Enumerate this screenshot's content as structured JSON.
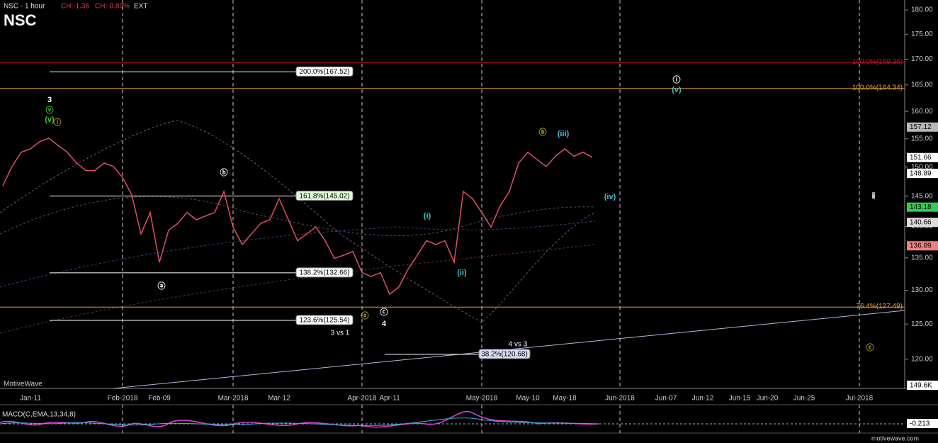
{
  "chart_data": {
    "type": "line",
    "title": "NSC",
    "subtitle": "NSC - 1 hour",
    "change": "CH:-1.36",
    "change_pct": "CH:-0.89%",
    "session": "EXT",
    "watermark": "MotiveWave",
    "footer": "motivewave.com",
    "log": true,
    "categories": [
      null,
      null,
      null,
      "Jan-11",
      null,
      null,
      null,
      null,
      null,
      null,
      null,
      null,
      null,
      "Feb-2018",
      null,
      null,
      null,
      "Feb-09",
      null,
      null,
      null,
      null,
      null,
      null,
      null,
      "Mar-2018",
      null,
      null,
      null,
      null,
      "Mar-12",
      null,
      null,
      null,
      null,
      null,
      null,
      null,
      null,
      "Apr-2018",
      null,
      null,
      "Apr-11",
      null,
      null,
      null,
      null,
      null,
      null,
      null,
      null,
      null,
      "May-2018",
      null,
      null,
      null,
      null,
      "May-10",
      null,
      null,
      null,
      "May-18",
      null,
      null,
      null,
      null,
      null,
      "Jun-2018",
      null,
      null,
      null,
      null,
      "Jun-07",
      null,
      null,
      null,
      "Jun-12",
      null,
      null,
      null,
      "Jun-15",
      null,
      null,
      "Jun-20",
      null,
      null,
      null,
      "Jun-25",
      null,
      null,
      null,
      null,
      null,
      "Jul-2018",
      null,
      null
    ],
    "series": [
      {
        "name": "NSC",
        "color": "#e0505a",
        "values": [
          146.8,
          150.1,
          152.6,
          153.2,
          154.5,
          155.1,
          153.8,
          152.6,
          150.7,
          149.4,
          149.4,
          150.7,
          150.1,
          148.2,
          145.2,
          138.8,
          142.3,
          134.3,
          139.4,
          140.5,
          142.3,
          141.1,
          141.7,
          142.3,
          145.8,
          139.9,
          137.1,
          138.8,
          140.5,
          141.1,
          144.6,
          141.1,
          137.7,
          138.8,
          139.9,
          137.7,
          134.9,
          135.4,
          136.0,
          132.7,
          132.1,
          132.7,
          129.4,
          130.5,
          133.2,
          135.4,
          137.7,
          137.1,
          137.7,
          134.3,
          145.8,
          144.6,
          142.3,
          139.9,
          143.4,
          145.8,
          150.7,
          152.6,
          151.3,
          150.1,
          151.9,
          153.2,
          151.9,
          152.6,
          151.7,
          null,
          null,
          null,
          null,
          null,
          null,
          null,
          null,
          null,
          null,
          null,
          null,
          null,
          null,
          null,
          null,
          null,
          null,
          null,
          null,
          null,
          null,
          null,
          null,
          null,
          null,
          null,
          null,
          null,
          null,
          null
        ]
      }
    ],
    "ylim": [
      116,
      182.1
    ],
    "yticks": [
      {
        "value": 120,
        "label": "120.00"
      },
      {
        "value": 125,
        "label": "125.00"
      },
      {
        "value": 130,
        "label": "130.00"
      },
      {
        "value": 135,
        "label": "135.00"
      },
      {
        "value": 140,
        "label": "140.00"
      },
      {
        "value": 145,
        "label": "145.00"
      },
      {
        "value": 150,
        "label": "150.00"
      },
      {
        "value": 155,
        "label": "155.00"
      },
      {
        "value": 160,
        "label": "160.00"
      },
      {
        "value": 165,
        "label": "165.00"
      },
      {
        "value": 170,
        "label": "170.00"
      },
      {
        "value": 175,
        "label": "175.00"
      },
      {
        "value": 180,
        "label": "180.00"
      }
    ],
    "price_tags": [
      {
        "value": 157.12,
        "color": "#b8b8b8"
      },
      {
        "value": 151.66,
        "color": "#ffffff"
      },
      {
        "value": 148.89,
        "color": "#ffffff"
      },
      {
        "value": 143.18,
        "color": "#33cc55"
      },
      {
        "value": 140.66,
        "color": "#dddddd"
      },
      {
        "value": 136.89,
        "color": "#f08080"
      }
    ],
    "volume_tag": "149.6K",
    "fib_levels": [
      {
        "value": 167.52,
        "label": "200.0%(167.52)",
        "color": "#ffffff"
      },
      {
        "value": 145.02,
        "label": "161.8%(145.02)",
        "color": "#ffffff"
      },
      {
        "value": 132.66,
        "label": "138.2%(132.66)",
        "color": "#ffffff"
      },
      {
        "value": 125.54,
        "label": "123.6%(125.54)",
        "color": "#ffffff"
      },
      {
        "value": 120.68,
        "label": "38.2%(120.68)",
        "color": "#ffffff"
      },
      {
        "value": 169.36,
        "label": "100.0%(169.36)",
        "color": "#d0102a"
      },
      {
        "value": 164.34,
        "label": "100.0%(164.34)",
        "color": "#e8a030"
      },
      {
        "value": 127.49,
        "label": "76.4%(127.49)",
        "color": "#e8a030"
      }
    ],
    "annotations": [
      "3 vs 1",
      "4 vs 3"
    ],
    "wave_labels": [
      {
        "text": "3",
        "color": "#ffffff"
      },
      {
        "text": "ⓥ",
        "color": "#3cc83c"
      },
      {
        "text": "(v)",
        "color": "#3cc83c"
      },
      {
        "text": "ⓘ",
        "color": "#a8a020"
      },
      {
        "text": "ⓑ",
        "color": "#ffffff"
      },
      {
        "text": "ⓐ",
        "color": "#ffffff"
      },
      {
        "text": "ⓒ",
        "color": "#ffffff"
      },
      {
        "text": "4",
        "color": "#ffffff"
      },
      {
        "text": "ⓐ",
        "color": "#a8a020"
      },
      {
        "text": "(i)",
        "color": "#40c0d0"
      },
      {
        "text": "(ii)",
        "color": "#40c0d0"
      },
      {
        "text": "(iii)",
        "color": "#40c0d0"
      },
      {
        "text": "ⓑ",
        "color": "#a8a020"
      },
      {
        "text": "(iv)",
        "color": "#40c0d0"
      },
      {
        "text": "ⓘ",
        "color": "#ffffff"
      },
      {
        "text": "(v)",
        "color": "#40c0d0"
      },
      {
        "text": "ⅱ",
        "color": "#ffffff"
      },
      {
        "text": "ⓒ",
        "color": "#a8a020"
      }
    ],
    "macd_label": "MACD(C,EMA,13,34,8)",
    "macd_value": "-0.213"
  }
}
